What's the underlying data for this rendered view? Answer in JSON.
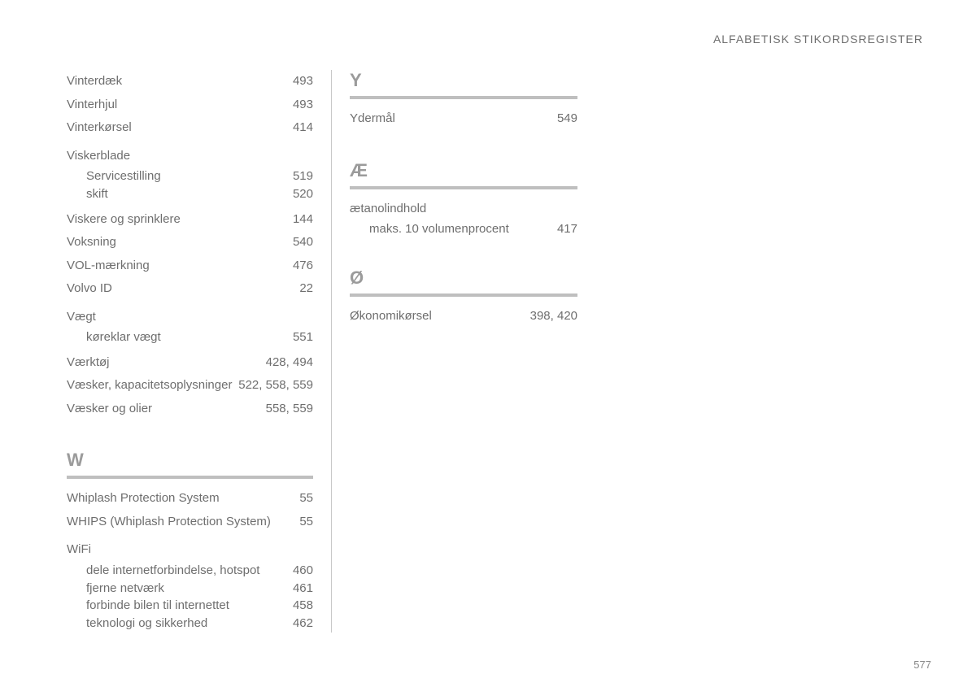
{
  "header": "ALFABETISK STIKORDSREGISTER",
  "pageNumber": "577",
  "col1": {
    "plain": [
      {
        "label": "Vinterdæk",
        "page": "493"
      },
      {
        "label": "Vinterhjul",
        "page": "493"
      },
      {
        "label": "Vinterkørsel",
        "page": "414"
      }
    ],
    "viskerblade": {
      "label": "Viskerblade",
      "subs": [
        {
          "label": "Servicestilling",
          "page": "519"
        },
        {
          "label": "skift",
          "page": "520"
        }
      ]
    },
    "plain2": [
      {
        "label": "Viskere og sprinklere",
        "page": "144"
      },
      {
        "label": "Voksning",
        "page": "540"
      },
      {
        "label": "VOL-mærkning",
        "page": "476"
      },
      {
        "label": "Volvo ID",
        "page": "22"
      }
    ],
    "vaegt": {
      "label": "Vægt",
      "subs": [
        {
          "label": "køreklar vægt",
          "page": "551"
        }
      ]
    },
    "plain3": [
      {
        "label": "Værktøj",
        "page": "428, 494"
      },
      {
        "label": "Væsker, kapacitetsoplysninger",
        "page": "522, 558, 559"
      },
      {
        "label": "Væsker og olier",
        "page": "558, 559"
      }
    ],
    "W": {
      "letter": "W",
      "entries": [
        {
          "label": "Whiplash Protection System",
          "page": "55"
        },
        {
          "label": "WHIPS (Whiplash Protection System)",
          "page": "55"
        }
      ],
      "wifi": {
        "label": "WiFi",
        "subs": [
          {
            "label": "dele internetforbindelse, hotspot",
            "page": "460"
          },
          {
            "label": "fjerne netværk",
            "page": "461"
          },
          {
            "label": "forbinde bilen til internettet",
            "page": "458"
          },
          {
            "label": "teknologi og sikkerhed",
            "page": "462"
          }
        ]
      }
    }
  },
  "col2": {
    "Y": {
      "letter": "Y",
      "entries": [
        {
          "label": "Ydermål",
          "page": "549"
        }
      ]
    },
    "AE": {
      "letter": "Æ",
      "aetanol": {
        "label": "ætanolindhold",
        "subs": [
          {
            "label": "maks. 10 volumenprocent",
            "page": "417"
          }
        ]
      }
    },
    "O": {
      "letter": "Ø",
      "entries": [
        {
          "label": "Økonomikørsel",
          "page": "398, 420"
        }
      ]
    }
  }
}
